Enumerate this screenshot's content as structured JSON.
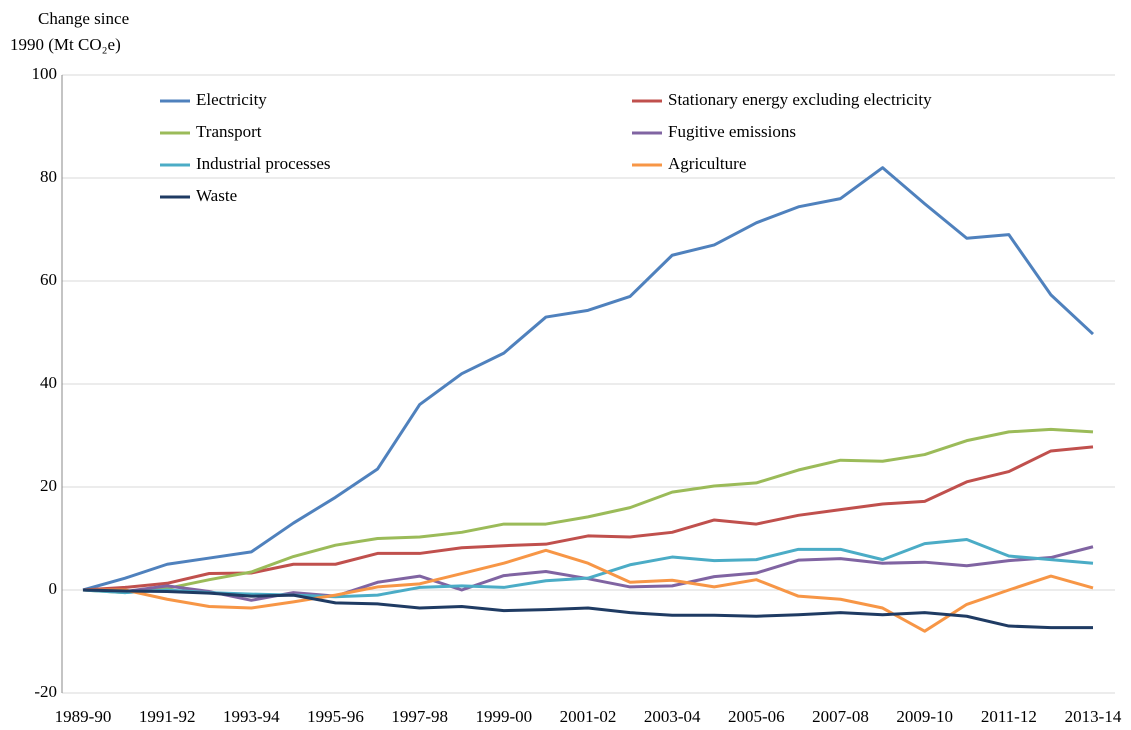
{
  "chart_data": {
    "type": "line",
    "y_label": [
      "Change since",
      "1990 (Mt CO₂e)"
    ],
    "categories": [
      "1989-90",
      null,
      "1991-92",
      null,
      "1993-94",
      null,
      "1995-96",
      null,
      "1997-98",
      null,
      "1999-00",
      null,
      "2001-02",
      null,
      "2003-04",
      null,
      "2005-06",
      null,
      "2007-08",
      null,
      "2009-10",
      null,
      "2011-12",
      null,
      "2013-14"
    ],
    "series": [
      {
        "name": "Electricity",
        "color": "#4f81bd",
        "values": [
          0,
          2.3,
          5,
          6.2,
          7.4,
          13,
          18,
          23.5,
          36,
          42,
          46,
          53,
          54.3,
          57,
          65,
          67,
          71.3,
          74.4,
          76,
          82,
          75,
          68.3,
          69,
          57.3,
          49.7
        ]
      },
      {
        "name": "Stationary energy excluding electricity",
        "color": "#c0504d",
        "values": [
          0,
          0.5,
          1.3,
          3.2,
          3.3,
          5,
          5,
          7.1,
          7.1,
          8.2,
          8.6,
          8.9,
          10.5,
          10.3,
          11.2,
          13.6,
          12.8,
          14.5,
          15.6,
          16.7,
          17.2,
          21,
          23,
          27,
          27.8
        ]
      },
      {
        "name": "Transport",
        "color": "#9bbb59",
        "values": [
          0,
          -0.5,
          0.3,
          2,
          3.5,
          6.5,
          8.7,
          10,
          10.3,
          11.2,
          12.8,
          12.8,
          14.2,
          16,
          19,
          20.2,
          20.8,
          23.3,
          25.2,
          25,
          26.3,
          29,
          30.7,
          31.2,
          30.7
        ]
      },
      {
        "name": "Fugitive emissions",
        "color": "#8064a2",
        "values": [
          0,
          -0.3,
          0.8,
          -0.3,
          -2,
          -0.5,
          -1.2,
          1.5,
          2.7,
          0,
          2.8,
          3.6,
          2.2,
          0.6,
          0.8,
          2.6,
          3.3,
          5.8,
          6.1,
          5.2,
          5.4,
          4.7,
          5.7,
          6.3,
          8.4
        ]
      },
      {
        "name": "Industrial processes",
        "color": "#4bacc6",
        "values": [
          0,
          -0.5,
          0,
          -0.5,
          -0.8,
          -1,
          -1.3,
          -1,
          0.5,
          0.8,
          0.5,
          1.8,
          2.3,
          4.9,
          6.4,
          5.7,
          5.9,
          7.9,
          7.9,
          5.9,
          9,
          9.8,
          6.6,
          5.9,
          5.2
        ]
      },
      {
        "name": "Agriculture",
        "color": "#f79646",
        "values": [
          0,
          0,
          -1.8,
          -3.2,
          -3.5,
          -2.3,
          -1,
          0.6,
          1.2,
          3.2,
          5.2,
          7.7,
          5.2,
          1.5,
          1.9,
          0.6,
          2,
          -1.2,
          -1.8,
          -3.5,
          -8,
          -2.8,
          0,
          2.7,
          0.4
        ]
      },
      {
        "name": "Waste",
        "color": "#1f3b63",
        "values": [
          0,
          -0.2,
          -0.3,
          -0.6,
          -1.2,
          -1,
          -2.5,
          -2.7,
          -3.5,
          -3.2,
          -4,
          -3.8,
          -3.5,
          -4.4,
          -4.9,
          -4.9,
          -5.1,
          -4.8,
          -4.4,
          -4.8,
          -4.4,
          -5.1,
          -7,
          -7.3,
          -7.3
        ]
      }
    ],
    "ylim": [
      -20,
      100
    ],
    "yticks": [
      -20,
      0,
      20,
      40,
      60,
      80,
      100
    ],
    "grid": true
  }
}
